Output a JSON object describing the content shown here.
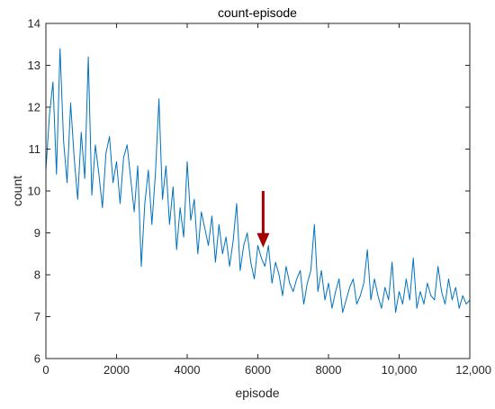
{
  "chart_data": {
    "type": "line",
    "title": "count-episode",
    "xlabel": "episode",
    "ylabel": "count",
    "xlim": [
      0,
      12000
    ],
    "ylim": [
      6,
      14
    ],
    "x_ticks": [
      0,
      2000,
      4000,
      6000,
      8000,
      10000,
      12000
    ],
    "x_tick_labels": [
      "0",
      "2000",
      "4000",
      "6000",
      "8000",
      "10,000",
      "12,000"
    ],
    "y_ticks": [
      6,
      7,
      8,
      9,
      10,
      11,
      12,
      13,
      14
    ],
    "y_tick_labels": [
      "6",
      "7",
      "8",
      "9",
      "10",
      "11",
      "12",
      "13",
      "14"
    ],
    "grid": false,
    "box": true,
    "series": [
      {
        "color": "#0072BD",
        "x": [
          0,
          100,
          200,
          300,
          400,
          500,
          600,
          700,
          800,
          900,
          1000,
          1100,
          1200,
          1300,
          1400,
          1500,
          1600,
          1700,
          1800,
          1900,
          2000,
          2100,
          2200,
          2300,
          2400,
          2500,
          2600,
          2700,
          2800,
          2900,
          3000,
          3100,
          3200,
          3300,
          3400,
          3500,
          3600,
          3700,
          3800,
          3900,
          4000,
          4100,
          4200,
          4300,
          4400,
          4500,
          4600,
          4700,
          4800,
          4900,
          5000,
          5100,
          5200,
          5300,
          5400,
          5500,
          5600,
          5700,
          5800,
          5900,
          6000,
          6100,
          6200,
          6300,
          6400,
          6500,
          6600,
          6700,
          6800,
          6900,
          7000,
          7100,
          7200,
          7300,
          7400,
          7500,
          7600,
          7700,
          7800,
          7900,
          8000,
          8100,
          8200,
          8300,
          8400,
          8500,
          8600,
          8700,
          8800,
          8900,
          9000,
          9100,
          9200,
          9300,
          9400,
          9500,
          9600,
          9700,
          9800,
          9900,
          10000,
          10100,
          10200,
          10300,
          10400,
          10500,
          10600,
          10700,
          10800,
          10900,
          11000,
          11100,
          11200,
          11300,
          11400,
          11500,
          11600,
          11700,
          11800,
          11900,
          12000
        ],
        "y": [
          10.5,
          11.8,
          12.6,
          10.4,
          13.4,
          11.2,
          10.2,
          12.1,
          10.8,
          9.8,
          11.4,
          10.3,
          13.2,
          9.9,
          11.1,
          10.4,
          9.6,
          10.9,
          11.3,
          10.2,
          10.7,
          9.7,
          10.8,
          11.1,
          10.3,
          9.5,
          10.6,
          8.2,
          9.7,
          10.5,
          9.2,
          10.4,
          12.2,
          9.8,
          10.6,
          9.2,
          10.1,
          8.6,
          9.6,
          8.9,
          10.7,
          9.3,
          9.8,
          8.5,
          9.5,
          9.1,
          8.7,
          9.4,
          8.3,
          9.2,
          8.5,
          8.9,
          8.2,
          8.8,
          9.7,
          8.1,
          8.7,
          9.0,
          8.3,
          7.9,
          8.7,
          8.4,
          8.2,
          8.7,
          7.8,
          8.3,
          8.0,
          7.5,
          8.2,
          7.8,
          7.6,
          7.9,
          8.1,
          7.3,
          7.8,
          8.1,
          9.2,
          7.6,
          8.1,
          7.4,
          7.8,
          7.2,
          7.6,
          7.9,
          7.1,
          7.4,
          7.7,
          7.9,
          7.3,
          7.5,
          7.8,
          8.6,
          7.4,
          7.9,
          7.5,
          7.2,
          7.7,
          7.4,
          8.3,
          7.1,
          7.6,
          7.3,
          7.9,
          7.4,
          8.4,
          7.2,
          7.6,
          7.3,
          7.8,
          7.5,
          7.4,
          8.2,
          7.6,
          7.3,
          7.9,
          7.4,
          7.7,
          7.2,
          7.5,
          7.3,
          7.4
        ]
      }
    ],
    "annotation": {
      "type": "arrow",
      "color": "#A50000",
      "from": [
        6150,
        10.0
      ],
      "to": [
        6150,
        8.65
      ]
    }
  }
}
